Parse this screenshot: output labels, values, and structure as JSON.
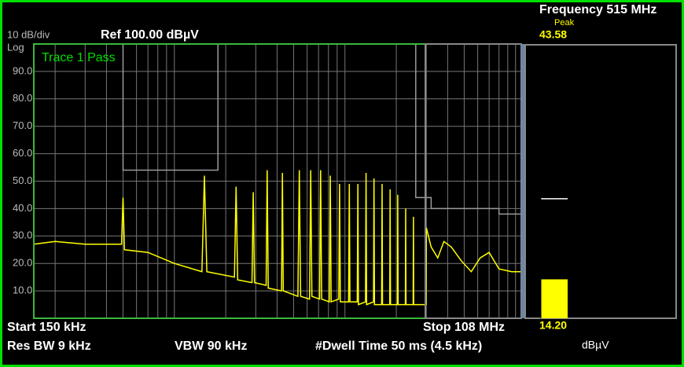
{
  "header": {
    "frequency": "Frequency 515 MHz",
    "peak_label": "Peak",
    "scale": "10 dB/div",
    "scale_type": "Log",
    "ref": "Ref 100.00 dBµV",
    "trace_status": "Trace 1 Pass"
  },
  "footer": {
    "start": "Start 150 kHz",
    "stop": "Stop 108 MHz",
    "rbw": "Res BW 9 kHz",
    "vbw": "VBW 90 kHz",
    "dwell": "#Dwell Time 50 ms (4.5 kHz)"
  },
  "meter": {
    "value": 14.2,
    "value_label": "14.20",
    "peak": 43.58,
    "unit": "dBµV",
    "color": "#ffff00",
    "peak_color": "#ffffff"
  },
  "chart_data": {
    "type": "line",
    "xscale": "log",
    "xlim": [
      0.15,
      108
    ],
    "ylim": [
      0,
      100
    ],
    "yticks": [
      {
        "value": 10,
        "label": "10.0"
      },
      {
        "value": 20,
        "label": "20.0"
      },
      {
        "value": 30,
        "label": "30.0"
      },
      {
        "value": 40,
        "label": "40.0"
      },
      {
        "value": 50,
        "label": "50.0"
      },
      {
        "value": 60,
        "label": "60.0"
      },
      {
        "value": 70,
        "label": "70.0"
      },
      {
        "value": 80,
        "label": "80.0"
      },
      {
        "value": 90,
        "label": "90.0"
      }
    ],
    "xgrid": [
      0.2,
      0.3,
      0.4,
      0.5,
      0.6,
      0.7,
      0.8,
      0.9,
      1,
      2,
      3,
      4,
      5,
      6,
      7,
      8,
      9,
      10,
      20,
      30,
      40,
      50,
      60,
      70,
      80,
      90,
      100
    ],
    "grid": true,
    "series": [
      {
        "color": "#ffff00",
        "x": [
          0.15,
          0.2,
          0.3,
          0.45,
          0.49,
          0.5,
          0.51,
          0.7,
          1.0,
          1.45,
          1.5,
          1.55,
          2.25,
          2.3,
          2.35,
          2.85,
          2.9,
          2.95,
          3.45,
          3.5,
          3.55,
          4.25,
          4.3,
          4.35,
          5.3,
          5.4,
          5.5,
          6.2,
          6.3,
          6.4,
          7.1,
          7.2,
          7.3,
          8.1,
          8.2,
          8.3,
          9.2,
          9.3,
          9.4,
          10.5,
          10.6,
          10.7,
          11.8,
          11.9,
          12.0,
          13.2,
          13.3,
          13.4,
          14.7,
          14.8,
          14.9,
          16.4,
          16.5,
          16.6,
          18.3,
          18.4,
          18.5,
          20.3,
          20.4,
          20.5,
          22.6,
          22.7,
          22.8,
          25.1,
          25.2,
          25.3,
          29.9,
          30,
          32,
          35,
          38,
          42,
          48,
          55,
          62,
          70,
          80,
          95,
          108
        ],
        "values": [
          27,
          28,
          27,
          27,
          27,
          44,
          25,
          24,
          20,
          17,
          52,
          17,
          15,
          48,
          14,
          13,
          46,
          13,
          12,
          54,
          11,
          10,
          53,
          10,
          8,
          54,
          8,
          7,
          54,
          8,
          7,
          54,
          7,
          6,
          52,
          6,
          7,
          49,
          6,
          6,
          49,
          6,
          6,
          49,
          5,
          6,
          53,
          5,
          6,
          51,
          5,
          5,
          49,
          5,
          5,
          47,
          5,
          5,
          45,
          5,
          5,
          40,
          5,
          5,
          37,
          5,
          5,
          33,
          26,
          22,
          28,
          26,
          21,
          17,
          22,
          24,
          18,
          17,
          17
        ]
      },
      {
        "color": "#9a9a9a",
        "x": [
          0.5,
          0.5,
          1.8,
          1.8
        ],
        "values": [
          100,
          54,
          54,
          100
        ]
      },
      {
        "color": "#9a9a9a",
        "x": [
          26,
          26,
          32,
          32,
          80,
          80,
          108
        ],
        "values": [
          100,
          44,
          44,
          40,
          40,
          38,
          38
        ]
      }
    ]
  }
}
